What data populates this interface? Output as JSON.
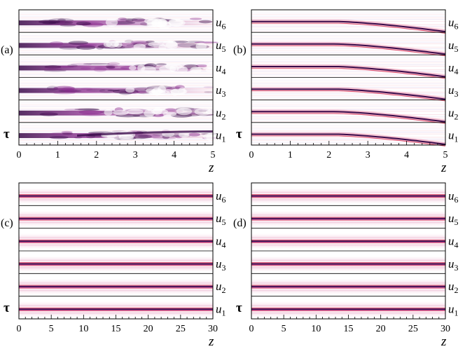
{
  "panels": [
    {
      "label": "(a)",
      "xticks": [
        "0",
        "1",
        "2",
        "3",
        "4",
        "5"
      ],
      "xlabel": "z",
      "ylabel": "τ",
      "components": [
        {
          "base": "u",
          "sub": "6"
        },
        {
          "base": "u",
          "sub": "5"
        },
        {
          "base": "u",
          "sub": "4"
        },
        {
          "base": "u",
          "sub": "3"
        },
        {
          "base": "u",
          "sub": "2"
        },
        {
          "base": "u",
          "sub": "1"
        }
      ],
      "pattern": "turbulent"
    },
    {
      "label": "(b)",
      "xticks": [
        "0",
        "1",
        "2",
        "3",
        "4",
        "5"
      ],
      "xlabel": "z",
      "ylabel": "τ",
      "components": [
        {
          "base": "u",
          "sub": "6"
        },
        {
          "base": "u",
          "sub": "5"
        },
        {
          "base": "u",
          "sub": "4"
        },
        {
          "base": "u",
          "sub": "3"
        },
        {
          "base": "u",
          "sub": "2"
        },
        {
          "base": "u",
          "sub": "1"
        }
      ],
      "pattern": "drift"
    },
    {
      "label": "(c)",
      "xticks": [
        "0",
        "5",
        "10",
        "15",
        "20",
        "25",
        "30"
      ],
      "xlabel": "z",
      "ylabel": "τ",
      "components": [
        {
          "base": "u",
          "sub": "6"
        },
        {
          "base": "u",
          "sub": "5"
        },
        {
          "base": "u",
          "sub": "4"
        },
        {
          "base": "u",
          "sub": "3"
        },
        {
          "base": "u",
          "sub": "2"
        },
        {
          "base": "u",
          "sub": "1"
        }
      ],
      "pattern": "stable"
    },
    {
      "label": "(d)",
      "xticks": [
        "0",
        "5",
        "10",
        "15",
        "20",
        "25",
        "30"
      ],
      "xlabel": "z",
      "ylabel": "τ",
      "components": [
        {
          "base": "u",
          "sub": "6"
        },
        {
          "base": "u",
          "sub": "5"
        },
        {
          "base": "u",
          "sub": "4"
        },
        {
          "base": "u",
          "sub": "3"
        },
        {
          "base": "u",
          "sub": "2"
        },
        {
          "base": "u",
          "sub": "1"
        }
      ],
      "pattern": "stable"
    }
  ],
  "colors": {
    "dark": "#3a0a4a",
    "purple": "#8a2a8e",
    "red": "#d83a5a",
    "pink": "#f0c0d4",
    "frame": "#000000"
  }
}
